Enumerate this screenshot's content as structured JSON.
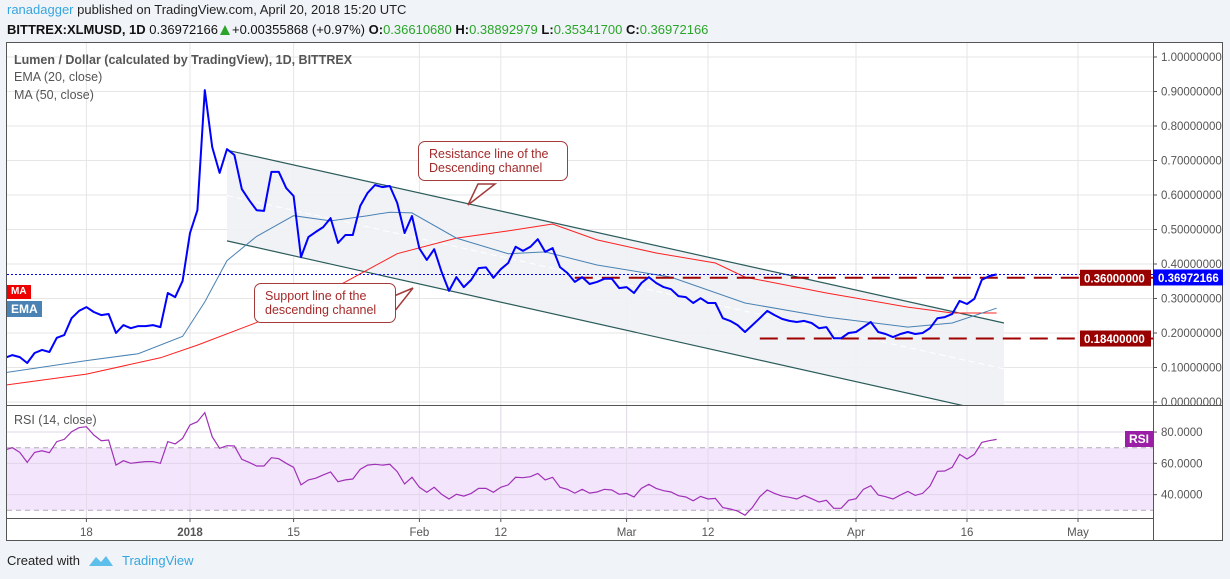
{
  "header": {
    "author": "ranadagger",
    "published": "published on TradingView.com, April 20, 2018 15:20 UTC",
    "symbol": "BITTREX:XLMUSD, 1D",
    "last": "0.36972166",
    "change": "+0.00355868 (+0.97%)",
    "o_label": "O:",
    "o": "0.36610680",
    "h_label": "H:",
    "h": "0.38892979",
    "l_label": "L:",
    "l": "0.35341700",
    "c_label": "C:",
    "c": "0.36972166",
    "up_icon": "triangle-up-icon"
  },
  "legend": {
    "title": "Lumen / Dollar (calculated by TradingView), 1D, BITTREX",
    "ema": "EMA (20, close)",
    "ma": "MA (50, close)",
    "rsi": "RSI (14, close)"
  },
  "badges": {
    "ema": "EMA",
    "ma": "MA",
    "rsi": "RSI"
  },
  "callouts": {
    "resistance": "Resistance line of the\nDescending channel",
    "support": "Support line of the\ndescending channel"
  },
  "footer": {
    "created_with": "Created with",
    "brand": "TradingView",
    "logo_icon": "tradingview-logo-icon"
  },
  "colors": {
    "price": "#0000ff",
    "ema": "#4a82b4",
    "ma": "#ff2020",
    "rsi": "#a030b8",
    "rsi_band": "#f3e6fc",
    "channel": "#2b5b5b",
    "channel_fill": "#eef1f4",
    "level": "#a00000",
    "last_price_tag": "#0000ff",
    "level_tag": "#990000",
    "positive": "#2aa52a",
    "author": "#37a6de"
  },
  "chart_data": [
    {
      "type": "line",
      "panel": "price",
      "title": "Lumen / Dollar (calculated by TradingView), 1D, BITTREX",
      "xlim": [
        "2017-12-07",
        "2018-05-11"
      ],
      "ylim": [
        0,
        1
      ],
      "grid": true,
      "x_ticks": [
        {
          "label": "18",
          "date": "2017-12-18"
        },
        {
          "label": "2018",
          "date": "2018-01-01",
          "bold": true
        },
        {
          "label": "15",
          "date": "2018-01-15"
        },
        {
          "label": "Feb",
          "date": "2018-02-01"
        },
        {
          "label": "12",
          "date": "2018-02-12"
        },
        {
          "label": "Mar",
          "date": "2018-03-01"
        },
        {
          "label": "12",
          "date": "2018-03-12"
        },
        {
          "label": "Apr",
          "date": "2018-04-01"
        },
        {
          "label": "16",
          "date": "2018-04-16"
        },
        {
          "label": "May",
          "date": "2018-05-01"
        }
      ],
      "y_ticks": [
        {
          "label": "1.00000000",
          "value": 1.0
        },
        {
          "label": "0.90000000",
          "value": 0.9
        },
        {
          "label": "0.80000000",
          "value": 0.8
        },
        {
          "label": "0.70000000",
          "value": 0.7
        },
        {
          "label": "0.60000000",
          "value": 0.6
        },
        {
          "label": "0.50000000",
          "value": 0.5
        },
        {
          "label": "0.40000000",
          "value": 0.4
        },
        {
          "label": "0.30000000",
          "value": 0.3
        },
        {
          "label": "0.20000000",
          "value": 0.2
        },
        {
          "label": "0.10000000",
          "value": 0.1
        },
        {
          "label": "0.00000000",
          "value": 0.0
        }
      ],
      "dates": [
        "2017-12-07",
        "2017-12-08",
        "2017-12-09",
        "2017-12-10",
        "2017-12-11",
        "2017-12-12",
        "2017-12-13",
        "2017-12-14",
        "2017-12-15",
        "2017-12-16",
        "2017-12-17",
        "2017-12-18",
        "2017-12-19",
        "2017-12-20",
        "2017-12-21",
        "2017-12-22",
        "2017-12-23",
        "2017-12-24",
        "2017-12-25",
        "2017-12-26",
        "2017-12-27",
        "2017-12-28",
        "2017-12-29",
        "2017-12-30",
        "2017-12-31",
        "2018-01-01",
        "2018-01-02",
        "2018-01-03",
        "2018-01-04",
        "2018-01-05",
        "2018-01-06",
        "2018-01-07",
        "2018-01-08",
        "2018-01-09",
        "2018-01-10",
        "2018-01-11",
        "2018-01-12",
        "2018-01-13",
        "2018-01-14",
        "2018-01-15",
        "2018-01-16",
        "2018-01-17",
        "2018-01-18",
        "2018-01-19",
        "2018-01-20",
        "2018-01-21",
        "2018-01-22",
        "2018-01-23",
        "2018-01-24",
        "2018-01-25",
        "2018-01-26",
        "2018-01-27",
        "2018-01-28",
        "2018-01-29",
        "2018-01-30",
        "2018-01-31",
        "2018-02-01",
        "2018-02-02",
        "2018-02-03",
        "2018-02-04",
        "2018-02-05",
        "2018-02-06",
        "2018-02-07",
        "2018-02-08",
        "2018-02-09",
        "2018-02-10",
        "2018-02-11",
        "2018-02-12",
        "2018-02-13",
        "2018-02-14",
        "2018-02-15",
        "2018-02-16",
        "2018-02-17",
        "2018-02-18",
        "2018-02-19",
        "2018-02-20",
        "2018-02-21",
        "2018-02-22",
        "2018-02-23",
        "2018-02-24",
        "2018-02-25",
        "2018-02-26",
        "2018-02-27",
        "2018-02-28",
        "2018-03-01",
        "2018-03-02",
        "2018-03-03",
        "2018-03-04",
        "2018-03-05",
        "2018-03-06",
        "2018-03-07",
        "2018-03-08",
        "2018-03-09",
        "2018-03-10",
        "2018-03-11",
        "2018-03-12",
        "2018-03-13",
        "2018-03-14",
        "2018-03-15",
        "2018-03-16",
        "2018-03-17",
        "2018-03-18",
        "2018-03-19",
        "2018-03-20",
        "2018-03-21",
        "2018-03-22",
        "2018-03-23",
        "2018-03-24",
        "2018-03-25",
        "2018-03-26",
        "2018-03-27",
        "2018-03-28",
        "2018-03-29",
        "2018-03-30",
        "2018-03-31",
        "2018-04-01",
        "2018-04-02",
        "2018-04-03",
        "2018-04-04",
        "2018-04-05",
        "2018-04-06",
        "2018-04-07",
        "2018-04-08",
        "2018-04-09",
        "2018-04-10",
        "2018-04-11",
        "2018-04-12",
        "2018-04-13",
        "2018-04-14",
        "2018-04-15",
        "2018-04-16",
        "2018-04-17",
        "2018-04-18",
        "2018-04-19",
        "2018-04-20"
      ],
      "series": [
        {
          "key": "close",
          "values": [
            0.128,
            0.136,
            0.13,
            0.113,
            0.142,
            0.151,
            0.145,
            0.186,
            0.194,
            0.243,
            0.264,
            0.275,
            0.261,
            0.252,
            0.255,
            0.2,
            0.223,
            0.214,
            0.22,
            0.22,
            0.223,
            0.217,
            0.316,
            0.304,
            0.351,
            0.49,
            0.556,
            0.904,
            0.739,
            0.664,
            0.733,
            0.716,
            0.617,
            0.585,
            0.556,
            0.554,
            0.667,
            0.667,
            0.62,
            0.597,
            0.42,
            0.478,
            0.493,
            0.507,
            0.533,
            0.461,
            0.484,
            0.484,
            0.568,
            0.606,
            0.629,
            0.623,
            0.626,
            0.577,
            0.49,
            0.539,
            0.445,
            0.412,
            0.443,
            0.377,
            0.322,
            0.362,
            0.333,
            0.354,
            0.388,
            0.39,
            0.36,
            0.385,
            0.403,
            0.45,
            0.438,
            0.45,
            0.472,
            0.435,
            0.446,
            0.391,
            0.374,
            0.348,
            0.362,
            0.342,
            0.348,
            0.357,
            0.357,
            0.33,
            0.333,
            0.316,
            0.345,
            0.362,
            0.345,
            0.333,
            0.327,
            0.307,
            0.304,
            0.287,
            0.301,
            0.287,
            0.287,
            0.243,
            0.235,
            0.223,
            0.203,
            0.223,
            0.243,
            0.264,
            0.252,
            0.241,
            0.235,
            0.232,
            0.235,
            0.229,
            0.214,
            0.217,
            0.185,
            0.185,
            0.2,
            0.203,
            0.217,
            0.232,
            0.203,
            0.197,
            0.188,
            0.197,
            0.203,
            0.197,
            0.2,
            0.214,
            0.243,
            0.246,
            0.255,
            0.293,
            0.284,
            0.299,
            0.354,
            0.365,
            0.36972166
          ]
        },
        {
          "key": "ema",
          "name": "EMA (20, close)",
          "points": [
            [
              "2017-12-07",
              0.085
            ],
            [
              "2017-12-18",
              0.12
            ],
            [
              "2017-12-25",
              0.14
            ],
            [
              "2017-12-31",
              0.19
            ],
            [
              "2018-01-03",
              0.29
            ],
            [
              "2018-01-06",
              0.41
            ],
            [
              "2018-01-10",
              0.48
            ],
            [
              "2018-01-15",
              0.54
            ],
            [
              "2018-01-20",
              0.525
            ],
            [
              "2018-01-25",
              0.54
            ],
            [
              "2018-01-28",
              0.55
            ],
            [
              "2018-01-31",
              0.548
            ],
            [
              "2018-02-06",
              0.475
            ],
            [
              "2018-02-13",
              0.43
            ],
            [
              "2018-02-18",
              0.435
            ],
            [
              "2018-02-25",
              0.397
            ],
            [
              "2018-03-07",
              0.362
            ],
            [
              "2018-03-17",
              0.287
            ],
            [
              "2018-03-28",
              0.246
            ],
            [
              "2018-04-08",
              0.217
            ],
            [
              "2018-04-14",
              0.229
            ],
            [
              "2018-04-20",
              0.272
            ]
          ]
        },
        {
          "key": "ma",
          "name": "MA (50, close)",
          "points": [
            [
              "2017-12-07",
              0.049
            ],
            [
              "2017-12-18",
              0.081
            ],
            [
              "2017-12-28",
              0.128
            ],
            [
              "2018-01-02",
              0.165
            ],
            [
              "2018-01-08",
              0.214
            ],
            [
              "2018-01-15",
              0.272
            ],
            [
              "2018-01-22",
              0.348
            ],
            [
              "2018-01-29",
              0.43
            ],
            [
              "2018-02-06",
              0.475
            ],
            [
              "2018-02-13",
              0.496
            ],
            [
              "2018-02-19",
              0.516
            ],
            [
              "2018-02-25",
              0.47
            ],
            [
              "2018-03-05",
              0.432
            ],
            [
              "2018-03-13",
              0.403
            ],
            [
              "2018-03-17",
              0.362
            ],
            [
              "2018-03-28",
              0.316
            ],
            [
              "2018-04-08",
              0.275
            ],
            [
              "2018-04-14",
              0.258
            ],
            [
              "2018-04-20",
              0.258
            ]
          ]
        }
      ],
      "price_tags": [
        {
          "label": "0.36972166",
          "value": 0.36972166,
          "kind": "last"
        },
        {
          "label": "0.36000000",
          "value": 0.36,
          "kind": "level"
        },
        {
          "label": "0.18400000",
          "value": 0.184,
          "kind": "level"
        }
      ],
      "horizontal_levels": [
        {
          "value": 0.36,
          "from": "2018-02-22",
          "style": "dashed"
        },
        {
          "value": 0.184,
          "from": "2018-03-19",
          "style": "dashed"
        }
      ],
      "channel": {
        "upper": [
          [
            "2018-01-06",
            0.73
          ],
          [
            "2018-04-21",
            0.229
          ]
        ],
        "lower": [
          [
            "2018-01-06",
            0.467
          ],
          [
            "2018-04-21",
            -0.037
          ]
        ]
      }
    },
    {
      "type": "line",
      "panel": "rsi",
      "title": "RSI (14, close)",
      "ylim": [
        25.1,
        96.6
      ],
      "bands": [
        30,
        70
      ],
      "y_ticks": [
        {
          "label": "80.0000",
          "value": 80
        },
        {
          "label": "60.0000",
          "value": 60
        },
        {
          "label": "40.0000",
          "value": 40
        }
      ],
      "values": [
        68.5,
        70,
        67,
        60.6,
        67,
        68,
        66.8,
        73.9,
        75.3,
        80.2,
        82.8,
        83.4,
        78.1,
        74.5,
        74.9,
        58.9,
        61.7,
        60,
        60.6,
        61.1,
        61.1,
        60,
        73.9,
        72.4,
        76,
        84.5,
        86.6,
        92.4,
        77,
        69.6,
        71.3,
        71.1,
        62.6,
        60.6,
        58.3,
        58.3,
        63.6,
        63,
        60,
        57.5,
        46.2,
        49.4,
        50.5,
        52.6,
        54.5,
        48.3,
        49.4,
        50,
        56.2,
        58.9,
        59.4,
        58.9,
        59.4,
        54.7,
        46.8,
        51.1,
        44.7,
        41.5,
        44.7,
        40.2,
        37.2,
        40.2,
        39.1,
        40.8,
        44,
        44,
        41.5,
        44.7,
        46.2,
        51.1,
        50.8,
        51.5,
        53.6,
        49.4,
        51.1,
        44.7,
        43.4,
        41,
        43.4,
        41,
        41.7,
        43.4,
        43,
        40.2,
        40.8,
        38.5,
        44,
        46.6,
        44,
        42.5,
        41.7,
        39.3,
        38.5,
        36.1,
        38.9,
        37.2,
        37.6,
        31.7,
        30.8,
        29.5,
        26.9,
        31.8,
        38.7,
        43,
        40.8,
        39.1,
        38.3,
        37.2,
        39.5,
        37.4,
        35.3,
        36.4,
        31.3,
        31.3,
        36.4,
        37.4,
        43.4,
        45.7,
        39.8,
        38.7,
        37.2,
        39.8,
        42.1,
        39.5,
        40.8,
        45.5,
        54.9,
        55.1,
        57.5,
        65.8,
        62.8,
        65.8,
        73.4,
        74.5,
        75.3
      ]
    }
  ]
}
